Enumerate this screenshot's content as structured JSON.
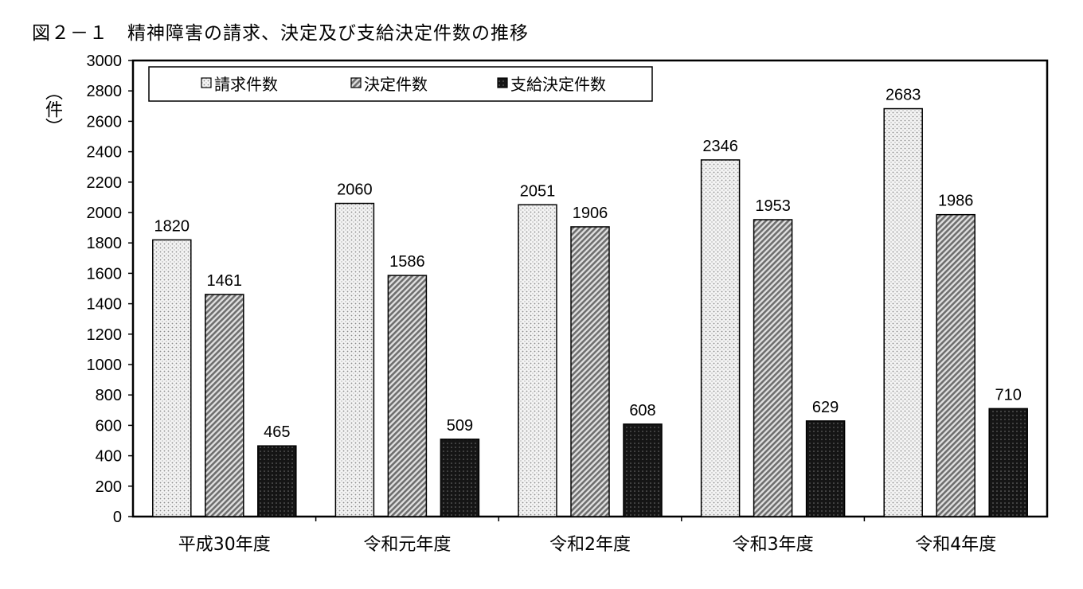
{
  "title": "図２－１　精神障害の請求、決定及び支給決定件数の推移",
  "chart_data": {
    "type": "bar",
    "title": "図２－１　精神障害の請求、決定及び支給決定件数の推移",
    "ylabel": "（件）",
    "xlabel": "",
    "ylim": [
      0,
      3000
    ],
    "ytick_step": 200,
    "yticks": [
      "0",
      "200",
      "400",
      "600",
      "800",
      "1000",
      "1200",
      "1400",
      "1600",
      "1800",
      "2000",
      "2200",
      "2400",
      "2600",
      "2800",
      "3000"
    ],
    "categories": [
      "平成30年度",
      "令和元年度",
      "令和2年度",
      "令和3年度",
      "令和4年度"
    ],
    "series": [
      {
        "name": "請求件数",
        "values": [
          1820,
          2060,
          2051,
          2346,
          2683
        ],
        "pattern": "dots",
        "color": "#c8c8c8"
      },
      {
        "name": "決定件数",
        "values": [
          1461,
          1586,
          1906,
          1953,
          1986
        ],
        "pattern": "hatch",
        "color": "#888888"
      },
      {
        "name": "支給決定件数",
        "values": [
          465,
          509,
          608,
          629,
          710
        ],
        "pattern": "dark",
        "color": "#111111"
      }
    ],
    "legend_position": "top-left",
    "grid": false
  }
}
